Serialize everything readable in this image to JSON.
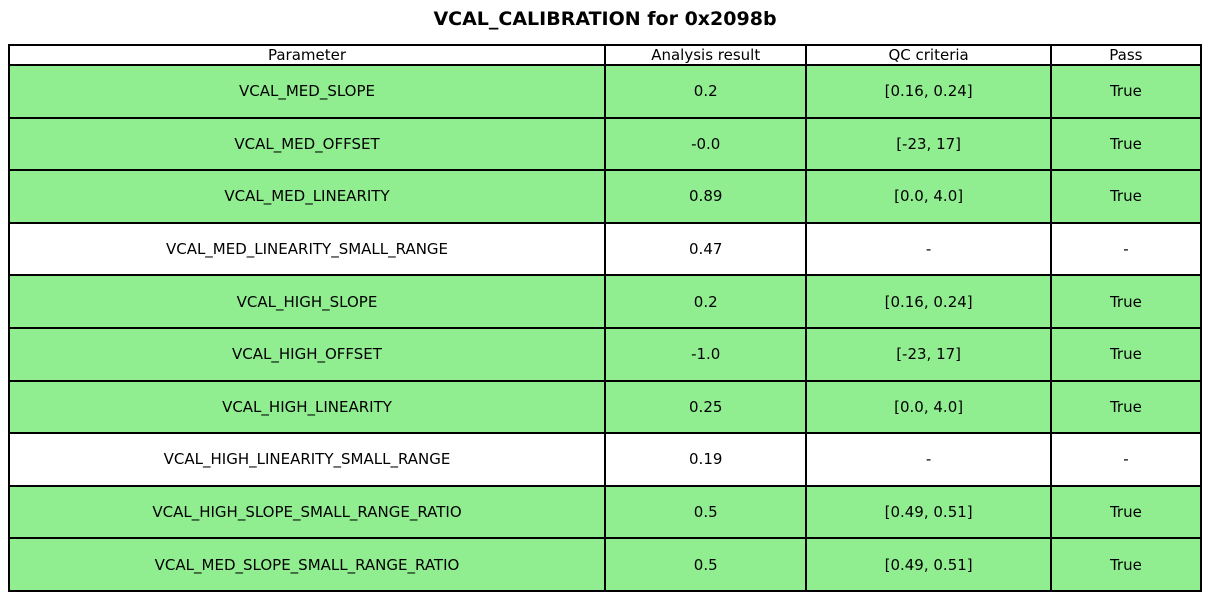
{
  "title": "VCAL_CALIBRATION for 0x2098b",
  "table": {
    "headers": {
      "parameter": "Parameter",
      "result": "Analysis result",
      "criteria": "QC criteria",
      "pass": "Pass"
    },
    "rows": [
      {
        "parameter": "VCAL_MED_SLOPE",
        "result": "0.2",
        "criteria": "[0.16, 0.24]",
        "pass": "True",
        "highlighted": true
      },
      {
        "parameter": "VCAL_MED_OFFSET",
        "result": "-0.0",
        "criteria": "[-23, 17]",
        "pass": "True",
        "highlighted": true
      },
      {
        "parameter": "VCAL_MED_LINEARITY",
        "result": "0.89",
        "criteria": "[0.0, 4.0]",
        "pass": "True",
        "highlighted": true
      },
      {
        "parameter": "VCAL_MED_LINEARITY_SMALL_RANGE",
        "result": "0.47",
        "criteria": "-",
        "pass": "-",
        "highlighted": false
      },
      {
        "parameter": "VCAL_HIGH_SLOPE",
        "result": "0.2",
        "criteria": "[0.16, 0.24]",
        "pass": "True",
        "highlighted": true
      },
      {
        "parameter": "VCAL_HIGH_OFFSET",
        "result": "-1.0",
        "criteria": "[-23, 17]",
        "pass": "True",
        "highlighted": true
      },
      {
        "parameter": "VCAL_HIGH_LINEARITY",
        "result": "0.25",
        "criteria": "[0.0, 4.0]",
        "pass": "True",
        "highlighted": true
      },
      {
        "parameter": "VCAL_HIGH_LINEARITY_SMALL_RANGE",
        "result": "0.19",
        "criteria": "-",
        "pass": "-",
        "highlighted": false
      },
      {
        "parameter": "VCAL_HIGH_SLOPE_SMALL_RANGE_RATIO",
        "result": "0.5",
        "criteria": "[0.49, 0.51]",
        "pass": "True",
        "highlighted": true
      },
      {
        "parameter": "VCAL_MED_SLOPE_SMALL_RANGE_RATIO",
        "result": "0.5",
        "criteria": "[0.49, 0.51]",
        "pass": "True",
        "highlighted": true
      }
    ],
    "colors": {
      "pass_row_bg": "#90EE90",
      "default_row_bg": "#FFFFFF",
      "border": "#000000"
    }
  },
  "chart_data": {
    "type": "table",
    "title": "VCAL_CALIBRATION for 0x2098b",
    "columns": [
      "Parameter",
      "Analysis result",
      "QC criteria",
      "Pass"
    ],
    "rows": [
      [
        "VCAL_MED_SLOPE",
        "0.2",
        "[0.16, 0.24]",
        "True"
      ],
      [
        "VCAL_MED_OFFSET",
        "-0.0",
        "[-23, 17]",
        "True"
      ],
      [
        "VCAL_MED_LINEARITY",
        "0.89",
        "[0.0, 4.0]",
        "True"
      ],
      [
        "VCAL_MED_LINEARITY_SMALL_RANGE",
        "0.47",
        "-",
        "-"
      ],
      [
        "VCAL_HIGH_SLOPE",
        "0.2",
        "[0.16, 0.24]",
        "True"
      ],
      [
        "VCAL_HIGH_OFFSET",
        "-1.0",
        "[-23, 17]",
        "True"
      ],
      [
        "VCAL_HIGH_LINEARITY",
        "0.25",
        "[0.0, 4.0]",
        "True"
      ],
      [
        "VCAL_HIGH_LINEARITY_SMALL_RANGE",
        "0.19",
        "-",
        "-"
      ],
      [
        "VCAL_HIGH_SLOPE_SMALL_RANGE_RATIO",
        "0.5",
        "[0.49, 0.51]",
        "True"
      ],
      [
        "VCAL_MED_SLOPE_SMALL_RANGE_RATIO",
        "0.5",
        "[0.49, 0.51]",
        "True"
      ]
    ],
    "row_highlighted_green": [
      true,
      true,
      true,
      false,
      true,
      true,
      true,
      false,
      true,
      true
    ]
  }
}
